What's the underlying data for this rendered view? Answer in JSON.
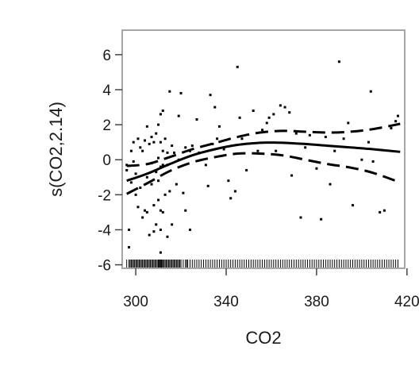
{
  "chart_data": {
    "type": "scatter",
    "title": "",
    "xlabel": "CO2",
    "ylabel": "s(CO2,2.14)",
    "xlim": [
      294,
      419
    ],
    "ylim": [
      -6.2,
      7.4
    ],
    "x_ticks": [
      300,
      340,
      380,
      420
    ],
    "y_ticks": [
      -6,
      -4,
      -2,
      0,
      2,
      4,
      6
    ],
    "grid": false,
    "legend": "none",
    "colors": {
      "marks": "#000000",
      "frame": "#a6a6a6",
      "text": "#1a1a1a"
    },
    "fit": {
      "x": [
        296,
        305,
        315,
        325,
        335,
        345,
        355,
        360,
        365,
        375,
        385,
        395,
        405,
        417
      ],
      "y": [
        -1.2,
        -0.8,
        -0.25,
        0.25,
        0.6,
        0.85,
        0.97,
        0.98,
        0.97,
        0.9,
        0.8,
        0.7,
        0.6,
        0.45
      ]
    },
    "upper_band": {
      "x": [
        296,
        305,
        315,
        325,
        335,
        345,
        355,
        365,
        375,
        385,
        395,
        405,
        417
      ],
      "y": [
        -0.35,
        -0.25,
        0.15,
        0.6,
        0.95,
        1.3,
        1.55,
        1.65,
        1.6,
        1.55,
        1.6,
        1.75,
        2.05
      ]
    },
    "lower_band": {
      "x": [
        296,
        305,
        315,
        325,
        335,
        345,
        355,
        365,
        375,
        385,
        395,
        405,
        417
      ],
      "y": [
        -1.95,
        -1.35,
        -0.65,
        -0.15,
        0.15,
        0.35,
        0.35,
        0.25,
        0.0,
        -0.25,
        -0.45,
        -0.75,
        -1.3
      ]
    },
    "residuals": [
      [
        296,
        -0.3
      ],
      [
        296,
        -0.6
      ],
      [
        297,
        -4.0
      ],
      [
        297,
        -5.0
      ],
      [
        298,
        -1.3
      ],
      [
        298,
        0.5
      ],
      [
        299,
        -0.1
      ],
      [
        299,
        1.0
      ],
      [
        300,
        -2.0
      ],
      [
        300,
        -0.8
      ],
      [
        301,
        -2.7
      ],
      [
        301,
        1.2
      ],
      [
        302,
        -1.6
      ],
      [
        302,
        0.7
      ],
      [
        303,
        -3.3
      ],
      [
        303,
        0.5
      ],
      [
        304,
        -2.9
      ],
      [
        304,
        1.1
      ],
      [
        305,
        -3.0
      ],
      [
        305,
        1.9
      ],
      [
        305,
        -1.0
      ],
      [
        306,
        -4.3
      ],
      [
        306,
        0.9
      ],
      [
        307,
        -1.4
      ],
      [
        307,
        -0.2
      ],
      [
        307,
        1.3
      ],
      [
        308,
        -4.1
      ],
      [
        308,
        -2.6
      ],
      [
        308,
        1.0
      ],
      [
        309,
        -3.7
      ],
      [
        309,
        -0.7
      ],
      [
        309,
        1.5
      ],
      [
        310,
        -2.3
      ],
      [
        310,
        -1.2
      ],
      [
        310,
        0.1
      ],
      [
        310,
        2.0
      ],
      [
        311,
        -4.0
      ],
      [
        311,
        -5.3
      ],
      [
        311,
        -2.9
      ],
      [
        311,
        -0.4
      ],
      [
        311,
        1.0
      ],
      [
        311,
        2.6
      ],
      [
        312,
        -3.0
      ],
      [
        312,
        -0.3
      ],
      [
        312,
        0.5
      ],
      [
        312,
        2.8
      ],
      [
        313,
        -2.0
      ],
      [
        313,
        1.2
      ],
      [
        314,
        -4.4
      ],
      [
        314,
        -0.3
      ],
      [
        314,
        0.4
      ],
      [
        315,
        -1.8
      ],
      [
        315,
        3.9
      ],
      [
        316,
        -3.7
      ],
      [
        316,
        0.8
      ],
      [
        317,
        0.4
      ],
      [
        318,
        -1.4
      ],
      [
        319,
        2.5
      ],
      [
        319,
        0.0
      ],
      [
        320,
        3.8
      ],
      [
        321,
        -1.9
      ],
      [
        322,
        -2.9
      ],
      [
        322,
        0.7
      ],
      [
        324,
        -4.0
      ],
      [
        324,
        0.5
      ],
      [
        325,
        0.8
      ],
      [
        327,
        2.3
      ],
      [
        328,
        0.4
      ],
      [
        331,
        -0.3
      ],
      [
        332,
        -1.5
      ],
      [
        333,
        3.7
      ],
      [
        334,
        0.9
      ],
      [
        335,
        3.0
      ],
      [
        336,
        1.2
      ],
      [
        337,
        1.9
      ],
      [
        339,
        0.6
      ],
      [
        341,
        -1.2
      ],
      [
        342,
        -2.2
      ],
      [
        344,
        -1.8
      ],
      [
        345,
        5.3
      ],
      [
        346,
        2.4
      ],
      [
        347,
        1.2
      ],
      [
        349,
        -0.6
      ],
      [
        352,
        2.8
      ],
      [
        354,
        0.5
      ],
      [
        356,
        1.7
      ],
      [
        358,
        2.1
      ],
      [
        359,
        2.4
      ],
      [
        361,
        2.6
      ],
      [
        362,
        0.5
      ],
      [
        364,
        3.1
      ],
      [
        366,
        3.0
      ],
      [
        368,
        2.7
      ],
      [
        369,
        -0.9
      ],
      [
        371,
        1.5
      ],
      [
        373,
        -3.3
      ],
      [
        375,
        0.7
      ],
      [
        377,
        1.4
      ],
      [
        380,
        -0.5
      ],
      [
        382,
        -3.4
      ],
      [
        384,
        1.3
      ],
      [
        386,
        -1.4
      ],
      [
        388,
        0.5
      ],
      [
        390,
        5.6
      ],
      [
        392,
        1.2
      ],
      [
        394,
        2.1
      ],
      [
        396,
        -2.6
      ],
      [
        400,
        0.0
      ],
      [
        403,
        1.0
      ],
      [
        404,
        3.9
      ],
      [
        405,
        -0.1
      ],
      [
        408,
        -3.0
      ],
      [
        410,
        -2.9
      ],
      [
        413,
        1.8
      ],
      [
        415,
        2.2
      ],
      [
        416,
        2.5
      ]
    ],
    "rug": [
      296,
      297,
      297.5,
      298,
      298.5,
      299,
      299.5,
      300,
      300.5,
      301,
      301.5,
      302,
      302.5,
      303,
      303.5,
      304,
      304.5,
      305,
      305.5,
      306,
      306.5,
      307,
      307.5,
      308,
      308.5,
      309,
      309.5,
      310,
      310.3,
      310.6,
      311,
      311.3,
      311.6,
      312,
      312.5,
      313,
      313.5,
      314,
      314.5,
      315,
      315.5,
      316,
      316.5,
      317,
      317.5,
      318,
      318.5,
      319,
      319.5,
      320,
      321,
      322,
      322.5,
      323,
      324,
      325,
      326,
      327,
      328,
      329,
      330,
      331,
      332,
      333,
      334,
      335,
      336,
      337,
      338,
      339,
      340,
      341,
      342,
      343,
      344,
      345,
      346,
      347,
      348,
      349,
      350,
      351,
      352,
      353,
      354,
      355,
      356,
      357,
      358,
      359,
      360,
      361,
      362,
      363,
      364,
      365,
      366,
      367,
      368,
      369,
      370,
      371,
      372,
      373,
      374,
      375,
      376,
      377,
      378,
      379,
      380,
      381,
      382,
      383,
      384,
      385,
      386,
      387,
      388,
      389,
      390,
      391,
      392,
      393,
      394,
      395,
      396,
      397,
      398,
      399,
      400,
      401,
      402,
      403,
      404,
      405,
      406,
      407,
      408,
      409,
      410,
      411,
      412,
      413,
      414,
      415,
      416
    ]
  }
}
